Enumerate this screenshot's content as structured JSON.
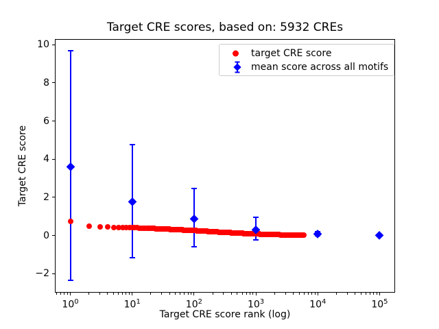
{
  "figure": {
    "title": "Target CRE scores, based on: 5932 CREs",
    "x_label": "Target CRE score rank (log)",
    "y_label": "Target CRE score",
    "colors": {
      "target": "#ff0000",
      "mean": "#0000ff",
      "axis": "#000000",
      "legend_border": "#cccccc",
      "background": "#ffffff"
    }
  },
  "legend": {
    "position": "upper right",
    "items": [
      {
        "label": "target CRE score",
        "marker": "circle",
        "color": "#ff0000"
      },
      {
        "label": "mean score across all motifs",
        "marker": "diamond-errorbar",
        "color": "#0000ff"
      }
    ]
  },
  "chart_data": {
    "type": "scatter",
    "title": "Target CRE scores, based on: 5932 CREs",
    "xlabel": "Target CRE score rank (log)",
    "ylabel": "Target CRE score",
    "grid": false,
    "x_scale": "log10",
    "x_range_log10": [
      -0.25,
      5.25
    ],
    "ylim": [
      -3.0,
      10.3
    ],
    "x_major_ticks": [
      1,
      10,
      100,
      1000,
      10000,
      100000
    ],
    "x_major_tick_labels": [
      {
        "base": "10",
        "exp": "0"
      },
      {
        "base": "10",
        "exp": "1"
      },
      {
        "base": "10",
        "exp": "2"
      },
      {
        "base": "10",
        "exp": "3"
      },
      {
        "base": "10",
        "exp": "4"
      },
      {
        "base": "10",
        "exp": "5"
      }
    ],
    "y_ticks": [
      -2,
      0,
      2,
      4,
      6,
      8,
      10
    ],
    "series": [
      {
        "name": "target CRE score",
        "marker": "circle",
        "color": "#ff0000",
        "n_points": 5932,
        "rank_range": [
          1,
          5932
        ],
        "sampled_points": [
          [
            1,
            0.74
          ],
          [
            2,
            0.5
          ],
          [
            3,
            0.46
          ],
          [
            4,
            0.44
          ],
          [
            5,
            0.43
          ],
          [
            7,
            0.42
          ],
          [
            10,
            0.41
          ],
          [
            15,
            0.385
          ],
          [
            20,
            0.37
          ],
          [
            30,
            0.345
          ],
          [
            50,
            0.31
          ],
          [
            70,
            0.285
          ],
          [
            100,
            0.26
          ],
          [
            150,
            0.225
          ],
          [
            200,
            0.2
          ],
          [
            300,
            0.165
          ],
          [
            500,
            0.125
          ],
          [
            700,
            0.1
          ],
          [
            1000,
            0.08
          ],
          [
            1500,
            0.06
          ],
          [
            2000,
            0.045
          ],
          [
            3000,
            0.03
          ],
          [
            4500,
            0.015
          ],
          [
            5932,
            0.005
          ]
        ]
      },
      {
        "name": "mean score across all motifs",
        "marker": "diamond",
        "color": "#0000ff",
        "x": [
          1,
          10,
          100,
          1000,
          10000,
          100000
        ],
        "y": [
          3.63,
          1.77,
          0.89,
          0.31,
          0.1,
          0.01
        ],
        "err_low": [
          -2.36,
          -1.16,
          -0.59,
          -0.23,
          0.0,
          -0.04
        ],
        "err_high": [
          9.68,
          4.78,
          2.47,
          0.95,
          0.2,
          0.06
        ]
      }
    ]
  }
}
